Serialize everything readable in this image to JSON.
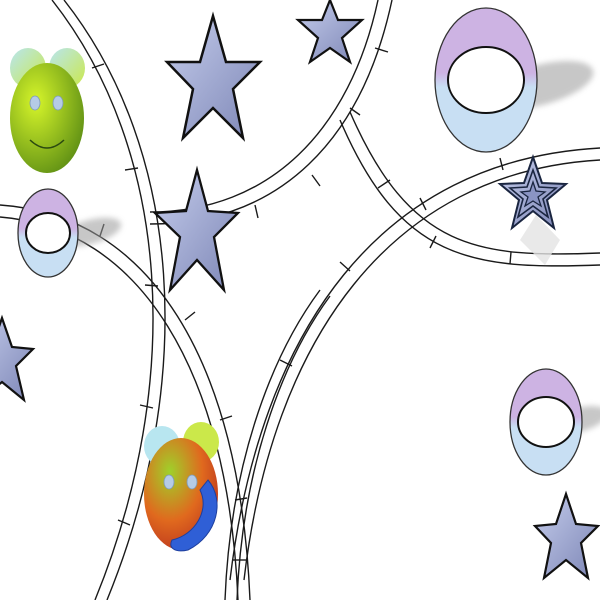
{
  "scene": {
    "background": "#ffffff",
    "track_color": "#1a1a1a",
    "star_fill_light": "#c5cdec",
    "star_fill_dark": "#7d86b6",
    "ring_top_color": "#cdb3e3",
    "ring_bottom_color": "#c8dff3",
    "shadow_color": "#9a9a9a",
    "face_green_light": "#d6f52a",
    "face_green_dark": "#5c8d14",
    "face_eye_color": "#b5cbe6",
    "face_smile_color": "#2b4a10",
    "face_blue_patch": "#2f5fd6"
  },
  "items": {
    "faces": [
      {
        "name": "green-smiley",
        "variant": "plain"
      },
      {
        "name": "red-green-smiley",
        "variant": "colorful"
      }
    ],
    "stars": [
      {
        "name": "star",
        "variant": "solid"
      },
      {
        "name": "outlined-star",
        "variant": "outlined"
      }
    ],
    "rings": [
      {
        "name": "ring"
      }
    ]
  }
}
